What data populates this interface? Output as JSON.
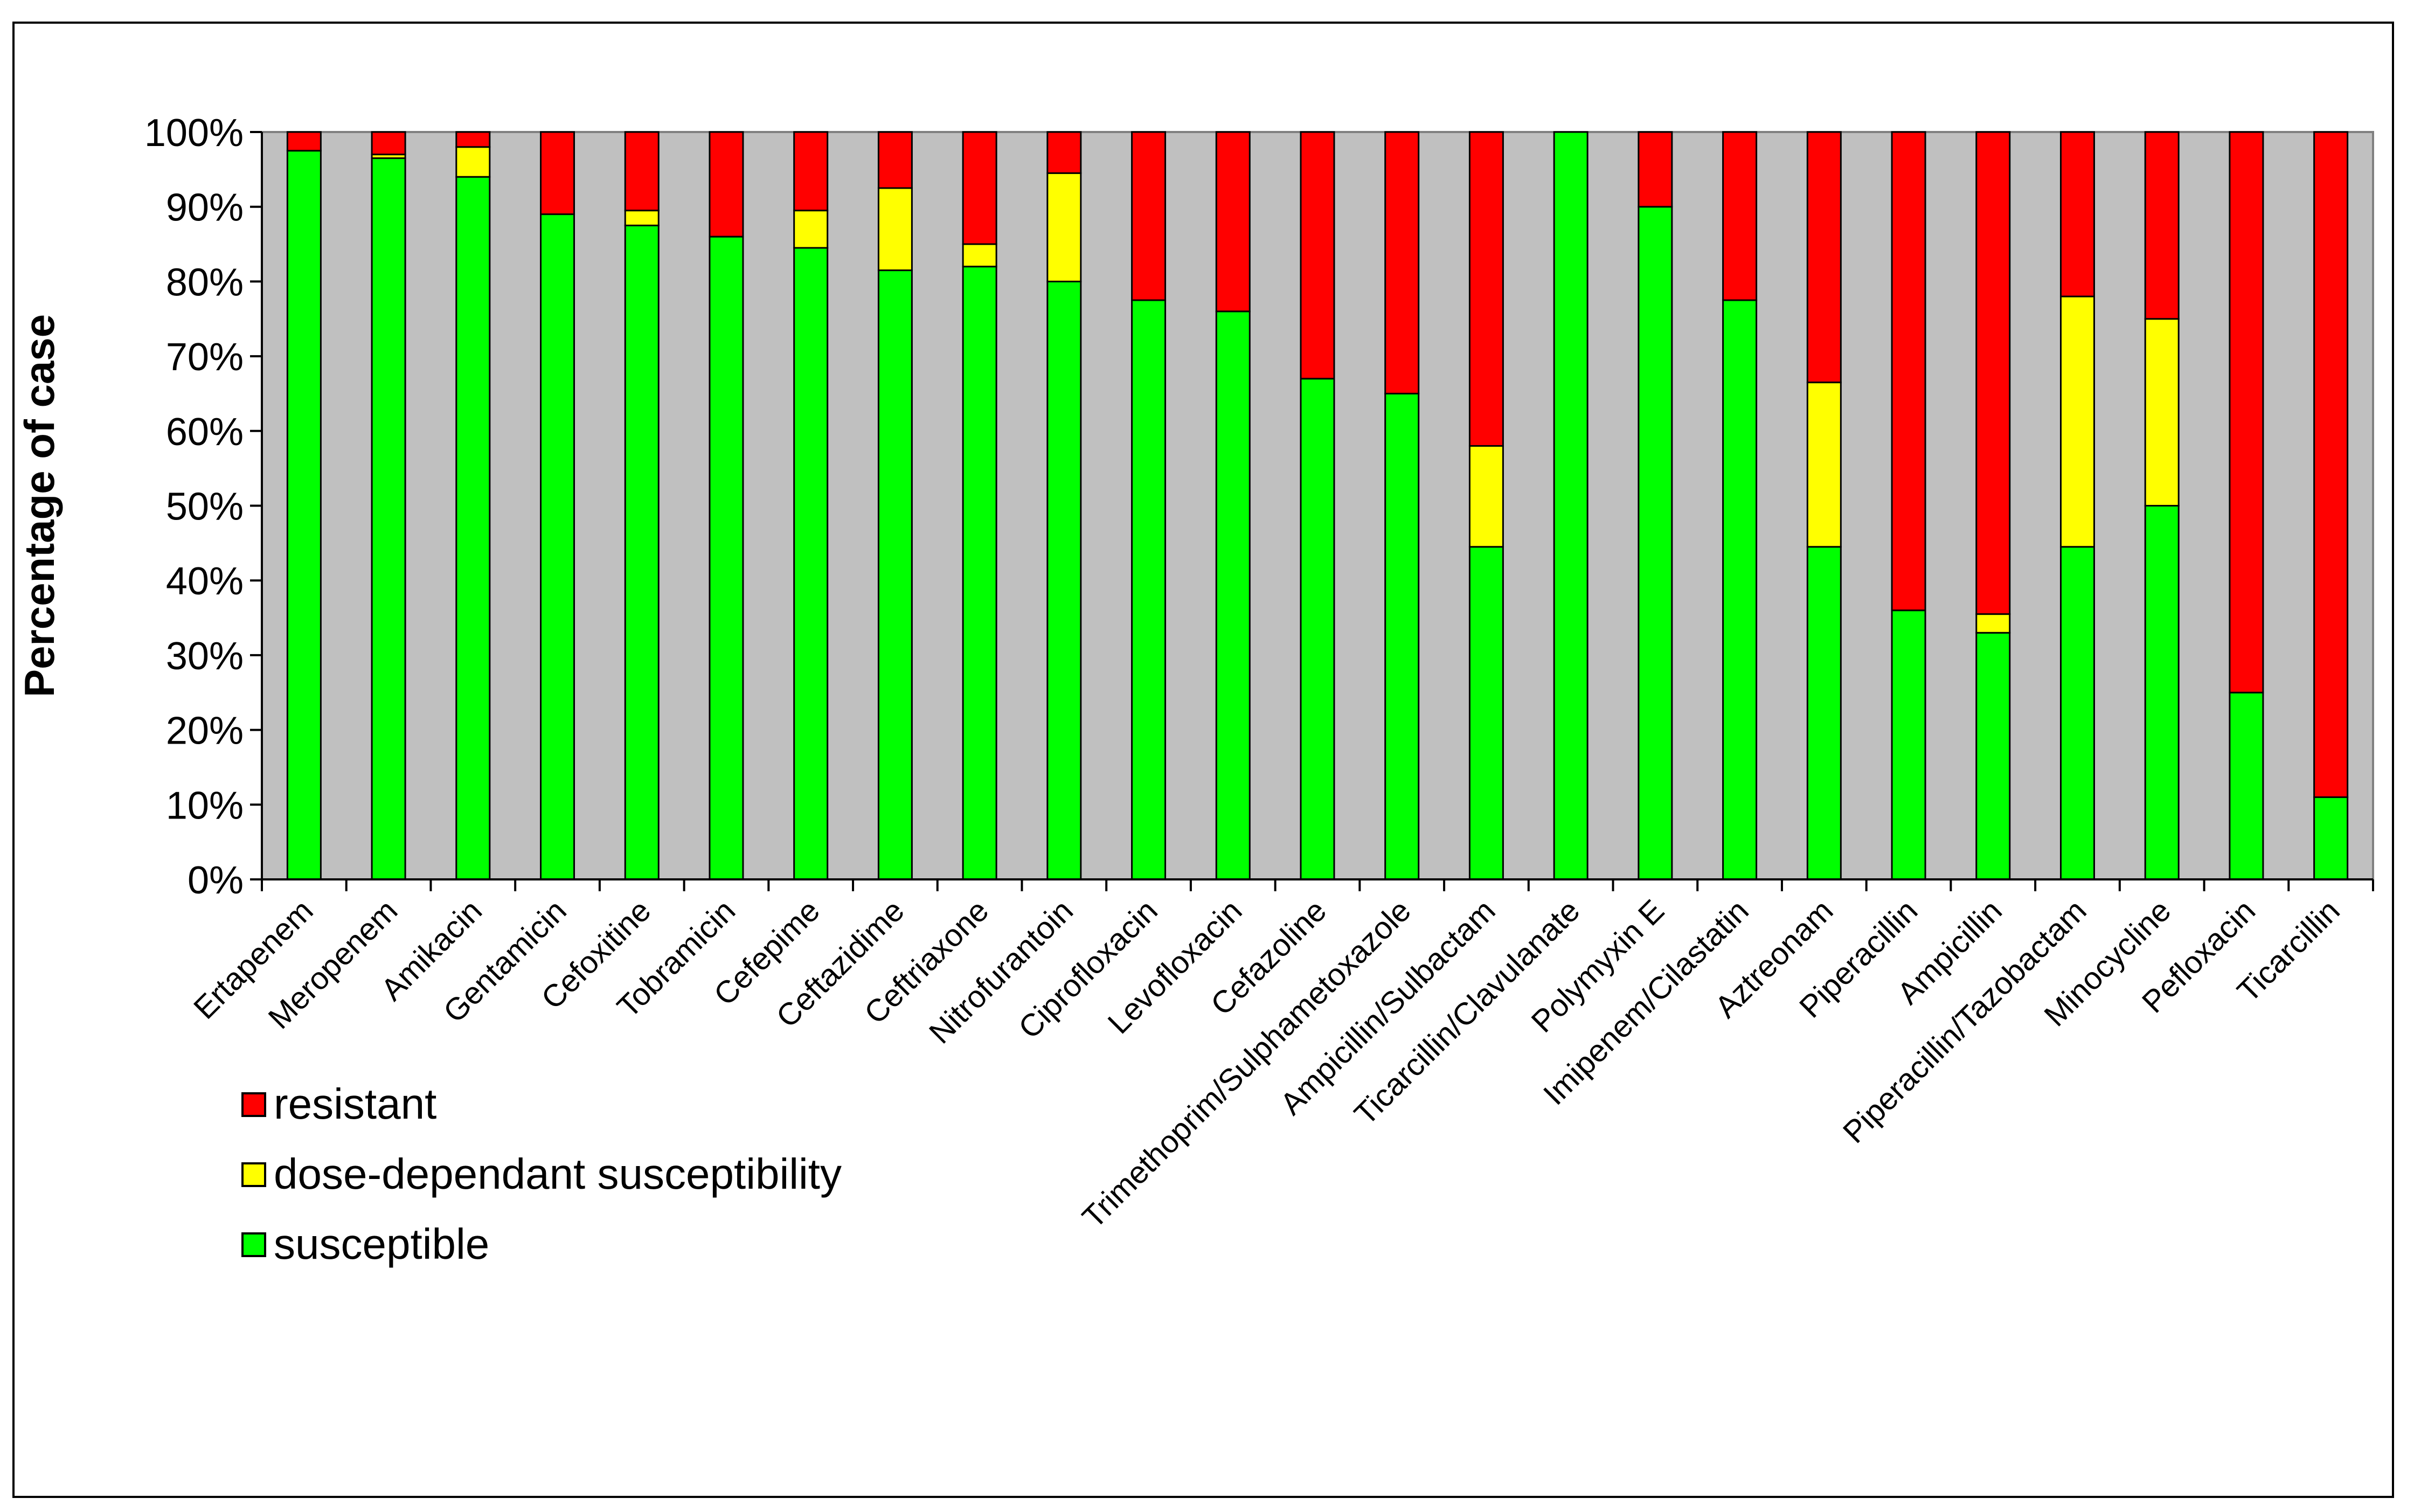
{
  "chart_data": {
    "type": "bar",
    "stacked": true,
    "percent_stacked": true,
    "title": "",
    "xlabel": "",
    "ylabel": "Percentage of case",
    "ylim": [
      0,
      100
    ],
    "y_ticks": [
      "0%",
      "10%",
      "20%",
      "30%",
      "40%",
      "50%",
      "60%",
      "70%",
      "80%",
      "90%",
      "100%"
    ],
    "grid": false,
    "legend_position": "bottom-left",
    "categories": [
      "Ertapenem",
      "Meropenem",
      "Amikacin",
      "Gentamicin",
      "Cefoxitine",
      "Tobramicin",
      "Cefepime",
      "Ceftazidime",
      "Ceftriaxone",
      "Nitrofurantoin",
      "Ciprofloxacin",
      "Levofloxacin",
      "Cefazoline",
      "Trimethoprim/Sulphametoxazole",
      "Ampicillin/Sulbactam",
      "Ticarcillin/Clavulanate",
      "Polymyxin E",
      "Imipenem/Cilastatin",
      "Aztreonam",
      "Piperacillin",
      "Ampicillin",
      "Piperacillin/Tazobactam",
      "Minocycline",
      "Pefloxacin",
      "Ticarcillin"
    ],
    "series": [
      {
        "name": "susceptible",
        "color": "#00ff00",
        "values": [
          97.5,
          96.5,
          94,
          89,
          87.5,
          86,
          84.5,
          81.5,
          82,
          80,
          77.5,
          76,
          67,
          65,
          44.5,
          100,
          90,
          77.5,
          44.5,
          36,
          33,
          44.5,
          50,
          25,
          11
        ]
      },
      {
        "name": "dose-dependant susceptibility",
        "color": "#ffff00",
        "values": [
          0,
          0.5,
          4,
          0,
          2,
          0,
          5,
          11,
          3,
          14.5,
          0,
          0,
          0,
          0,
          13.5,
          0,
          0,
          0,
          22,
          0,
          2.5,
          33.5,
          25,
          0,
          0
        ]
      },
      {
        "name": "resistant",
        "color": "#ff0000",
        "values": [
          2.5,
          3,
          2,
          11,
          10.5,
          14,
          10.5,
          7.5,
          15,
          5.5,
          22.5,
          24,
          33,
          35,
          42,
          0,
          10,
          22.5,
          33.5,
          64,
          64.5,
          22,
          25,
          75,
          89
        ]
      }
    ],
    "legend_order": [
      "resistant",
      "dose-dependant susceptibility",
      "susceptible"
    ],
    "plot_background": "#c0c0c0"
  }
}
